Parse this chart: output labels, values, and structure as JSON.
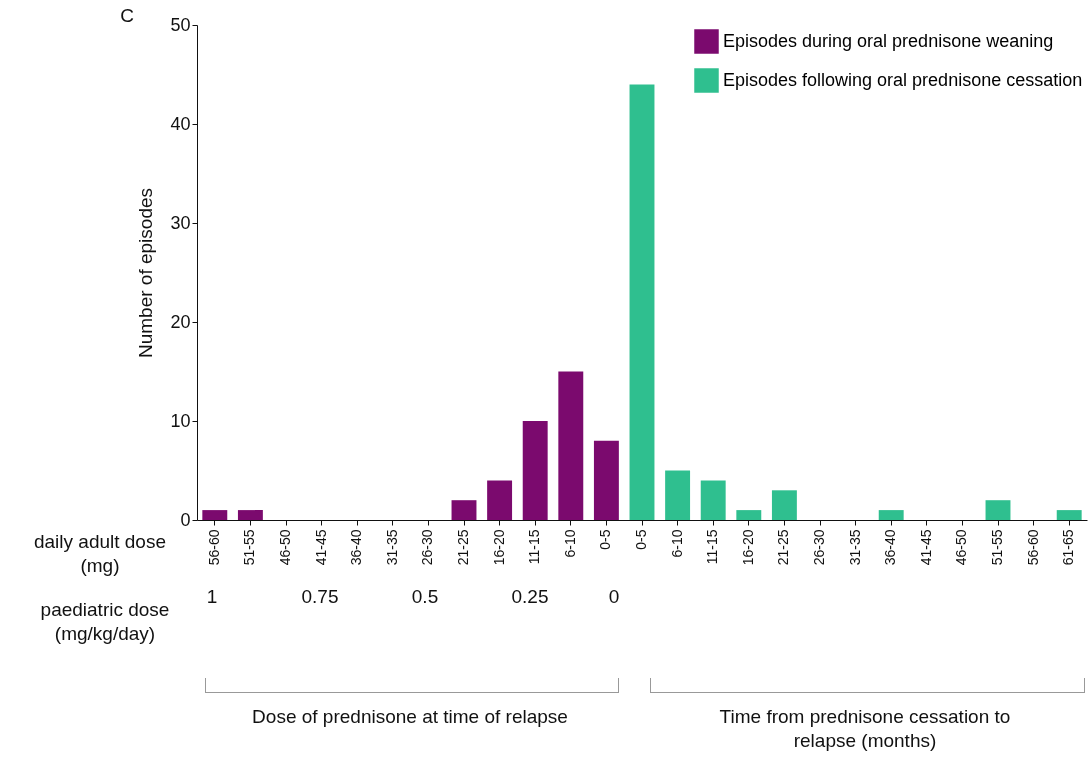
{
  "chart_data": {
    "type": "bar",
    "ylabel": "Number of episodes",
    "categories": [
      "56-60",
      "51-55",
      "46-50",
      "41-45",
      "36-40",
      "31-35",
      "26-30",
      "21-25",
      "16-20",
      "11-15",
      "6-10",
      "0-5",
      "0-5",
      "6-10",
      "11-15",
      "16-20",
      "21-25",
      "26-30",
      "31-35",
      "36-40",
      "41-45",
      "46-50",
      "51-55",
      "56-60",
      "61-65"
    ],
    "series": [
      {
        "name": "Episodes during oral prednisone weaning",
        "color": "#7b0a6e",
        "values": [
          1,
          1,
          0,
          0,
          0,
          0,
          0,
          2,
          4,
          10,
          15,
          8,
          null,
          null,
          null,
          null,
          null,
          null,
          null,
          null,
          null,
          null,
          null,
          null,
          null
        ]
      },
      {
        "name": "Episodes following oral prednisone cessation",
        "color": "#2fbf8f",
        "values": [
          null,
          null,
          null,
          null,
          null,
          null,
          null,
          null,
          null,
          null,
          null,
          null,
          44,
          5,
          4,
          1,
          3,
          0,
          0,
          1,
          0,
          0,
          2,
          0,
          1
        ]
      }
    ],
    "ylim": [
      0,
      50
    ],
    "yticks": [
      0,
      10,
      20,
      30,
      40,
      50
    ],
    "grid": false,
    "legend": "top right",
    "annotations": [
      "C",
      "daily adult dose (mg)",
      "paediatric dose (mg/kg/day)",
      "1",
      "0.75",
      "0.5",
      "0.25",
      "0",
      "Dose of prednisone at time of relapse",
      "Time from prednisone cessation to relapse (months)"
    ]
  }
}
